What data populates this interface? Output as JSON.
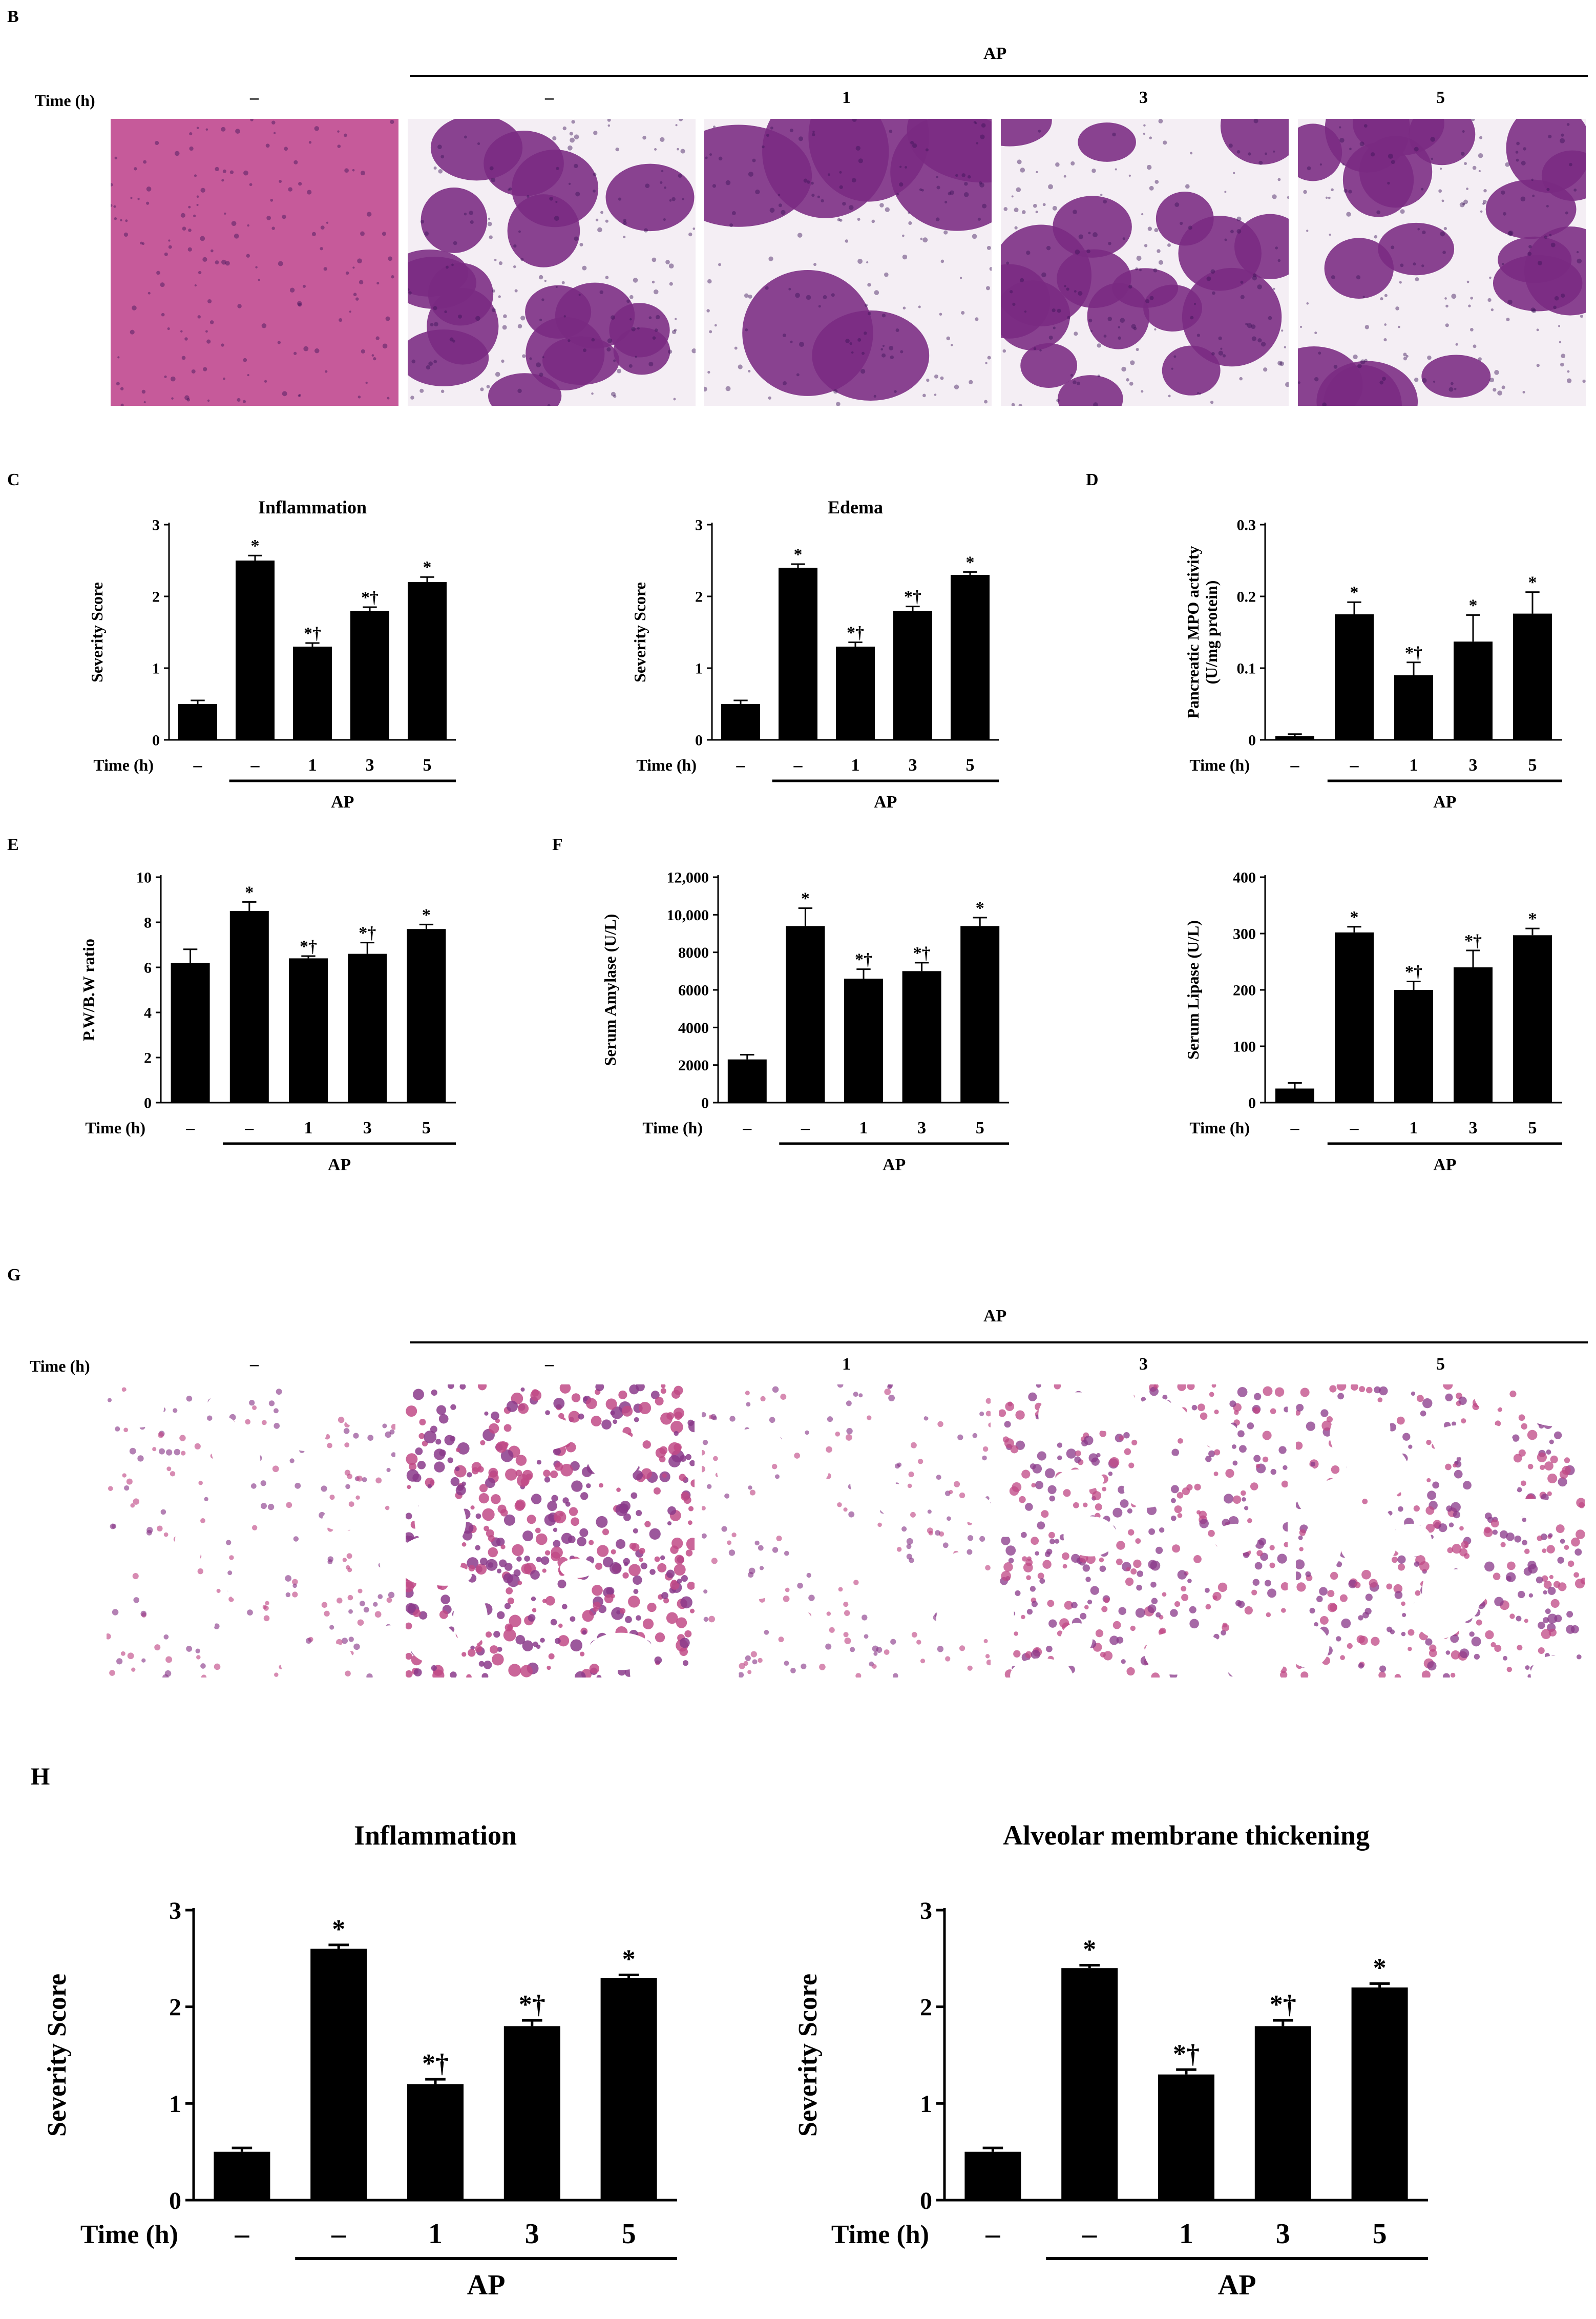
{
  "panels": {
    "B": "B",
    "C": "C",
    "D": "D",
    "E": "E",
    "F": "F",
    "G": "G",
    "H": "H"
  },
  "micrographs": {
    "B": {
      "group_label": "AP",
      "time_label": "Time (h)",
      "times": [
        "–",
        "–",
        "1",
        "3",
        "5"
      ],
      "tissue": "pancreas",
      "colors": {
        "stain_pink": "#c65a9a",
        "stain_purple": "#7a2a82",
        "background": "#ffffff"
      }
    },
    "G": {
      "group_label": "AP",
      "time_label": "Time (h)",
      "times": [
        "–",
        "–",
        "1",
        "3",
        "5"
      ],
      "tissue": "lung",
      "colors": {
        "stain_pink": "#c04a86",
        "stain_purple": "#8a3a8a",
        "background": "#ffffff"
      }
    }
  },
  "chart_data": [
    {
      "id": "C-inflammation",
      "type": "bar",
      "panel": "C",
      "title": "Inflammation",
      "ylabel": "Severity Score",
      "xlabel": "Time (h)",
      "categories": [
        "–",
        "–",
        "1",
        "3",
        "5"
      ],
      "values": [
        0.5,
        2.5,
        1.3,
        1.8,
        2.2
      ],
      "errors": [
        0.05,
        0.07,
        0.05,
        0.05,
        0.07
      ],
      "annotations": [
        "",
        "*",
        "*†",
        "*†",
        "*"
      ],
      "ylim": [
        0,
        3
      ],
      "yticks": [
        "0",
        "1",
        "2",
        "3"
      ],
      "group_label": "AP",
      "group_start": 1
    },
    {
      "id": "C-edema",
      "type": "bar",
      "panel": "C",
      "title": "Edema",
      "ylabel": "Severity Score",
      "xlabel": "Time (h)",
      "categories": [
        "–",
        "–",
        "1",
        "3",
        "5"
      ],
      "values": [
        0.5,
        2.4,
        1.3,
        1.8,
        2.3
      ],
      "errors": [
        0.05,
        0.05,
        0.06,
        0.06,
        0.04
      ],
      "annotations": [
        "",
        "*",
        "*†",
        "*†",
        "*"
      ],
      "ylim": [
        0,
        3
      ],
      "yticks": [
        "0",
        "1",
        "2",
        "3"
      ],
      "group_label": "AP",
      "group_start": 1
    },
    {
      "id": "D-mpo",
      "type": "bar",
      "panel": "D",
      "title": "",
      "ylabel": "Pancreatic MPO activity (U/mg protein)",
      "xlabel": "Time (h)",
      "categories": [
        "–",
        "–",
        "1",
        "3",
        "5"
      ],
      "values": [
        0.005,
        0.175,
        0.09,
        0.137,
        0.176
      ],
      "errors": [
        0.003,
        0.017,
        0.018,
        0.037,
        0.03
      ],
      "annotations": [
        "",
        "*",
        "*†",
        "*",
        "*"
      ],
      "ylim": [
        0,
        0.3
      ],
      "yticks": [
        "0",
        "0.1",
        "0.2",
        "0.3"
      ],
      "group_label": "AP",
      "group_start": 1
    },
    {
      "id": "E-pwbw",
      "type": "bar",
      "panel": "E",
      "title": "",
      "ylabel": "P.W/B.W ratio",
      "xlabel": "Time (h)",
      "categories": [
        "–",
        "–",
        "1",
        "3",
        "5"
      ],
      "values": [
        6.2,
        8.5,
        6.4,
        6.6,
        7.7
      ],
      "errors": [
        0.6,
        0.4,
        0.1,
        0.5,
        0.2
      ],
      "annotations": [
        "",
        "*",
        "*†",
        "*†",
        "*"
      ],
      "ylim": [
        0,
        10
      ],
      "yticks": [
        "0",
        "2",
        "4",
        "6",
        "8",
        "10"
      ],
      "group_label": "AP",
      "group_start": 1
    },
    {
      "id": "F-amylase",
      "type": "bar",
      "panel": "F",
      "title": "",
      "ylabel": "Serum Amylase (U/L)",
      "xlabel": "Time (h)",
      "categories": [
        "–",
        "–",
        "1",
        "3",
        "5"
      ],
      "values": [
        2300,
        9400,
        6600,
        7000,
        9400
      ],
      "errors": [
        250,
        950,
        500,
        450,
        450
      ],
      "annotations": [
        "",
        "*",
        "*†",
        "*†",
        "*"
      ],
      "ylim": [
        0,
        12000
      ],
      "yticks": [
        "0",
        "2000",
        "4000",
        "6000",
        "8000",
        "10,000",
        "12,000"
      ],
      "group_label": "AP",
      "group_start": 1
    },
    {
      "id": "F-lipase",
      "type": "bar",
      "panel": "F",
      "title": "",
      "ylabel": "Serum Lipase (U/L)",
      "xlabel": "Time (h)",
      "categories": [
        "–",
        "–",
        "1",
        "3",
        "5"
      ],
      "values": [
        25,
        302,
        200,
        240,
        297
      ],
      "errors": [
        10,
        10,
        15,
        30,
        12
      ],
      "annotations": [
        "",
        "*",
        "*†",
        "*†",
        "*"
      ],
      "ylim": [
        0,
        400
      ],
      "yticks": [
        "0",
        "100",
        "200",
        "300",
        "400"
      ],
      "group_label": "AP",
      "group_start": 1
    },
    {
      "id": "H-inflammation",
      "type": "bar",
      "panel": "H",
      "title": "Inflammation",
      "ylabel": "Severity Score",
      "xlabel": "Time (h)",
      "categories": [
        "–",
        "–",
        "1",
        "3",
        "5"
      ],
      "values": [
        0.5,
        2.6,
        1.2,
        1.8,
        2.3
      ],
      "errors": [
        0.04,
        0.04,
        0.05,
        0.06,
        0.03
      ],
      "annotations": [
        "",
        "*",
        "*†",
        "*†",
        "*"
      ],
      "ylim": [
        0,
        3
      ],
      "yticks": [
        "0",
        "1",
        "2",
        "3"
      ],
      "group_label": "AP",
      "group_start": 1
    },
    {
      "id": "H-alveolar",
      "type": "bar",
      "panel": "H",
      "title": "Alveolar membrane thickening",
      "ylabel": "Severity Score",
      "xlabel": "Time (h)",
      "categories": [
        "–",
        "–",
        "1",
        "3",
        "5"
      ],
      "values": [
        0.5,
        2.4,
        1.3,
        1.8,
        2.2
      ],
      "errors": [
        0.04,
        0.03,
        0.05,
        0.06,
        0.04
      ],
      "annotations": [
        "",
        "*",
        "*†",
        "*†",
        "*"
      ],
      "ylim": [
        0,
        3
      ],
      "yticks": [
        "0",
        "1",
        "2",
        "3"
      ],
      "group_label": "AP",
      "group_start": 1
    }
  ]
}
